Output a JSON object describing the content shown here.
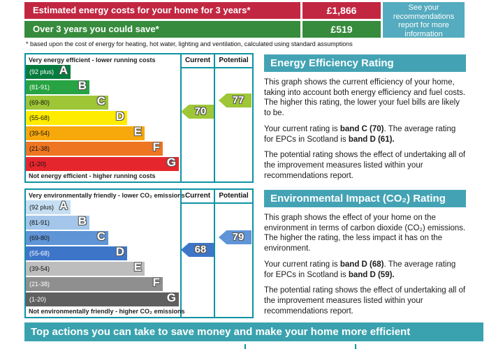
{
  "summary": {
    "rows": [
      {
        "label": "Estimated energy costs for your home for 3 years*",
        "value": "£1,866",
        "color": "#c22742"
      },
      {
        "label": "Over 3 years you could save*",
        "value": "£519",
        "color": "#378b3d"
      }
    ],
    "info_box": {
      "text": "See your recommendations report for more information",
      "color": "#55abbf"
    },
    "footnote": "* based upon the cost of energy for heating, hot water, lighting and ventilation, calculated using standard assumptions"
  },
  "chart_data": [
    {
      "type": "bar",
      "title": "Energy Efficiency Rating",
      "top_caption": "Very energy efficient - lower running costs",
      "bottom_caption": "Not energy efficient - higher running costs",
      "col_current": "Current",
      "col_potential": "Potential",
      "bands": [
        {
          "letter": "A",
          "range": "(92 plus)",
          "color": "#067c3e"
        },
        {
          "letter": "B",
          "range": "(81-91)",
          "color": "#27a343"
        },
        {
          "letter": "C",
          "range": "(69-80)",
          "color": "#9ec636"
        },
        {
          "letter": "D",
          "range": "(55-68)",
          "color": "#ffec00"
        },
        {
          "letter": "E",
          "range": "(39-54)",
          "color": "#f7a80b"
        },
        {
          "letter": "F",
          "range": "(21-38)",
          "color": "#ee7623"
        },
        {
          "letter": "G",
          "range": "(1-20)",
          "color": "#e6262d"
        }
      ],
      "current": {
        "value": 70,
        "band": "C",
        "color": "#9ec636"
      },
      "potential": {
        "value": 77,
        "band": "C",
        "color": "#9ec636"
      }
    },
    {
      "type": "bar",
      "title": "Environmental Impact (CO₂) Rating",
      "top_caption": "Very environmentally friendly - lower CO₂ emissions",
      "bottom_caption": "Not environmentally friendly - higher CO₂ emissions",
      "col_current": "Current",
      "col_potential": "Potential",
      "bands": [
        {
          "letter": "A",
          "range": "(92 plus)",
          "color": "#c6def2"
        },
        {
          "letter": "B",
          "range": "(81-91)",
          "color": "#a3c6ea"
        },
        {
          "letter": "C",
          "range": "(69-80)",
          "color": "#5f94d6"
        },
        {
          "letter": "D",
          "range": "(55-68)",
          "color": "#3d76c8"
        },
        {
          "letter": "E",
          "range": "(39-54)",
          "color": "#bdbdbd"
        },
        {
          "letter": "F",
          "range": "(21-38)",
          "color": "#8f8f8f"
        },
        {
          "letter": "G",
          "range": "(1-20)",
          "color": "#606060"
        }
      ],
      "current": {
        "value": 68,
        "band": "D",
        "color": "#3d76c8"
      },
      "potential": {
        "value": 79,
        "band": "C",
        "color": "#5f94d6"
      }
    }
  ],
  "panels": {
    "energy": {
      "title": "Energy Efficiency Rating",
      "p1": "This graph shows the current efficiency of your home, taking into account both energy efficiency and fuel costs. The higher this rating, the lower your fuel bills are likely to be.",
      "p2_pre": "Your current rating is ",
      "p2_b1": "band C (70)",
      "p2_mid": ". The average rating for EPCs in Scotland is ",
      "p2_b2": "band D (61).",
      "p3": "The potential rating shows the effect of undertaking all of the improvement measures listed within your recommendations report."
    },
    "environment": {
      "title": "Environmental Impact (CO₂) Rating",
      "p1": "This graph shows the effect of your home on the environment in terms of carbon dioxide (CO₂) emissions. The higher the rating, the less impact it has on the environment.",
      "p2_pre": "Your current rating is ",
      "p2_b1": "band D (68)",
      "p2_mid": ". The average rating for EPCs in Scotland is ",
      "p2_b2": "band D (59).",
      "p3": "The potential rating shows the effect of undertaking all of the improvement measures listed within your recommendations report."
    }
  },
  "banner": {
    "title": "Top actions you can take to save money and make your home more efficient"
  }
}
